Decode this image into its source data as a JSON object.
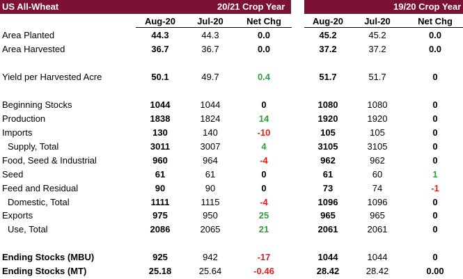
{
  "header": {
    "title": "US All-Wheat",
    "year_left": "20/21 Crop Year",
    "year_right": "19/20 Crop Year",
    "color": "#7b1133"
  },
  "columns": [
    "Aug-20",
    "Jul-20",
    "Net Chg",
    "Aug-20",
    "Jul-20",
    "Net Chg"
  ],
  "colors": {
    "positive": "#2e9e3e",
    "negative": "#e0201b"
  },
  "rows": [
    {
      "label": "Area Planted",
      "v": [
        "44.3",
        "44.3",
        "0.0",
        "45.2",
        "45.2",
        "0.0"
      ],
      "s": [
        "z",
        "z"
      ]
    },
    {
      "label": "Area Harvested",
      "v": [
        "36.7",
        "36.7",
        "0.0",
        "37.2",
        "37.2",
        "0.0"
      ],
      "s": [
        "z",
        "z"
      ]
    },
    {
      "label": "Yield per Harvested Acre",
      "v": [
        "50.1",
        "49.7",
        "0.4",
        "51.7",
        "51.7",
        "0"
      ],
      "s": [
        "p",
        "z"
      ]
    },
    {
      "label": "Beginning Stocks",
      "v": [
        "1044",
        "1044",
        "0",
        "1080",
        "1080",
        "0"
      ],
      "s": [
        "z",
        "z"
      ]
    },
    {
      "label": "Production",
      "v": [
        "1838",
        "1824",
        "14",
        "1920",
        "1920",
        "0"
      ],
      "s": [
        "p",
        "z"
      ]
    },
    {
      "label": "Imports",
      "v": [
        "130",
        "140",
        "-10",
        "105",
        "105",
        "0"
      ],
      "s": [
        "n",
        "z"
      ]
    },
    {
      "label": "Supply, Total",
      "v": [
        "3011",
        "3007",
        "4",
        "3105",
        "3105",
        "0"
      ],
      "s": [
        "p",
        "z"
      ]
    },
    {
      "label": "Food, Seed & Industrial",
      "v": [
        "960",
        "964",
        "-4",
        "962",
        "962",
        "0"
      ],
      "s": [
        "n",
        "z"
      ]
    },
    {
      "label": "Seed",
      "v": [
        "61",
        "61",
        "0",
        "61",
        "60",
        "1"
      ],
      "s": [
        "z",
        "p"
      ]
    },
    {
      "label": "Feed and Residual",
      "v": [
        "90",
        "90",
        "0",
        "73",
        "74",
        "-1"
      ],
      "s": [
        "z",
        "n"
      ]
    },
    {
      "label": "Domestic, Total",
      "v": [
        "1111",
        "1115",
        "-4",
        "1096",
        "1096",
        "0"
      ],
      "s": [
        "n",
        "z"
      ]
    },
    {
      "label": "Exports",
      "v": [
        "975",
        "950",
        "25",
        "965",
        "965",
        "0"
      ],
      "s": [
        "p",
        "z"
      ]
    },
    {
      "label": "Use, Total",
      "v": [
        "2086",
        "2065",
        "21",
        "2061",
        "2061",
        "0"
      ],
      "s": [
        "p",
        "z"
      ]
    },
    {
      "label": "Ending Stocks (MBU)",
      "v": [
        "925",
        "942",
        "-17",
        "1044",
        "1044",
        "0"
      ],
      "s": [
        "n",
        "z"
      ]
    },
    {
      "label": "Ending Stocks (MT)",
      "v": [
        "25.18",
        "25.64",
        "-0.46",
        "28.42",
        "28.42",
        "0.00"
      ],
      "s": [
        "n",
        "z"
      ]
    }
  ]
}
